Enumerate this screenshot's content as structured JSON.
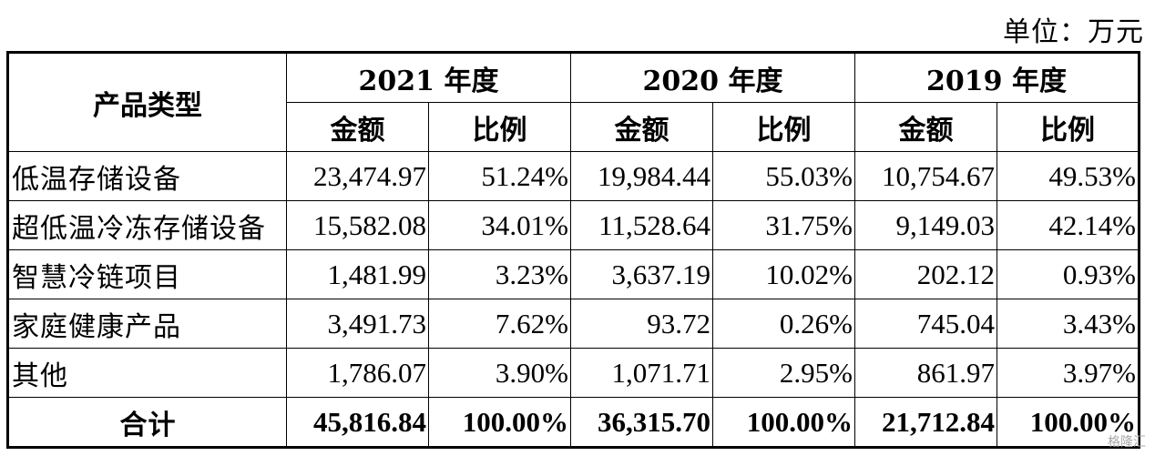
{
  "unit_label": "单位：万元",
  "header": {
    "category_label": "产品类型",
    "years": [
      "2021 年度",
      "2020 年度",
      "2019 年度"
    ],
    "amount_label": "金额",
    "ratio_label": "比例"
  },
  "rows": [
    {
      "name": "低温存储设备",
      "v": [
        "23,474.97",
        "51.24%",
        "19,984.44",
        "55.03%",
        "10,754.67",
        "49.53%"
      ]
    },
    {
      "name": "超低温冷冻存储设备",
      "v": [
        "15,582.08",
        "34.01%",
        "11,528.64",
        "31.75%",
        "9,149.03",
        "42.14%"
      ]
    },
    {
      "name": "智慧冷链项目",
      "v": [
        "1,481.99",
        "3.23%",
        "3,637.19",
        "10.02%",
        "202.12",
        "0.93%"
      ]
    },
    {
      "name": "家庭健康产品",
      "v": [
        "3,491.73",
        "7.62%",
        "93.72",
        "0.26%",
        "745.04",
        "3.43%"
      ]
    },
    {
      "name": "其他",
      "v": [
        "1,786.07",
        "3.90%",
        "1,071.71",
        "2.95%",
        "861.97",
        "3.97%"
      ]
    }
  ],
  "total": {
    "name": "合计",
    "v": [
      "45,816.84",
      "100.00%",
      "36,315.70",
      "100.00%",
      "21,712.84",
      "100.00%"
    ]
  },
  "watermark": "格隆汇"
}
